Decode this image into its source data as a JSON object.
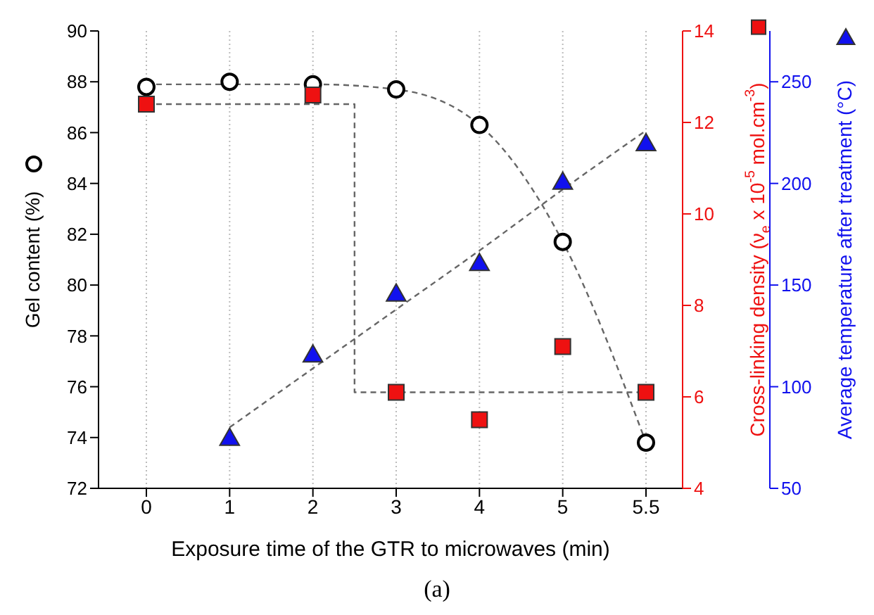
{
  "chart_data": {
    "type": "scatter",
    "xlabel": "Exposure time of the GTR to microwaves (min)",
    "ylabel": "Gel content (%)",
    "y2label": "Cross-linking density (ν$_{e}$ x 10$^{-5}$ mol.cm$^{-3}$)",
    "y3label": "Average temperature after treatment (°C)",
    "annotations": [
      "(a)"
    ],
    "categories": [
      "0",
      "1",
      "2",
      "3",
      "4",
      "5",
      "5.5"
    ],
    "series": [
      {
        "marker": "circle",
        "color": "#000000",
        "values": [
          87.8,
          88.0,
          87.9,
          87.7,
          86.3,
          81.7,
          73.8
        ]
      },
      {
        "axis": "y2",
        "marker": "square",
        "color": "#ee1111",
        "values": [
          12.4,
          null,
          12.6,
          6.1,
          5.5,
          7.1,
          6.1
        ]
      },
      {
        "axis": "y3",
        "marker": "triangle",
        "color": "#1111ee",
        "values": [
          null,
          75,
          116,
          146,
          161,
          201,
          220
        ]
      },
      {
        "type": "line",
        "marker": "none",
        "line_style": "dashed",
        "color": "#666666",
        "values": [
          87.9,
          87.9,
          87.9,
          87.7,
          86.3,
          81.7,
          73.8
        ]
      },
      {
        "type": "step",
        "axis": "y2",
        "marker": "none",
        "line_style": "dashed",
        "color": "#666666",
        "values": [
          12.4,
          12.4,
          12.4,
          6.1,
          6.1,
          6.1,
          6.1
        ]
      },
      {
        "type": "line",
        "axis": "y3",
        "marker": "none",
        "line_style": "dashed",
        "color": "#666666",
        "values": [
          null,
          80,
          109,
          138,
          167,
          197,
          226
        ]
      }
    ],
    "ylim": [
      72,
      90
    ],
    "yticks": [
      72,
      74,
      76,
      78,
      80,
      82,
      84,
      86,
      88,
      90
    ],
    "y2lim": [
      4,
      14
    ],
    "y2ticks": [
      4,
      6,
      8,
      10,
      12,
      14
    ],
    "y3lim": [
      50,
      275
    ],
    "y3ticks": [
      50,
      100,
      150,
      200,
      250
    ],
    "grid": "x"
  }
}
